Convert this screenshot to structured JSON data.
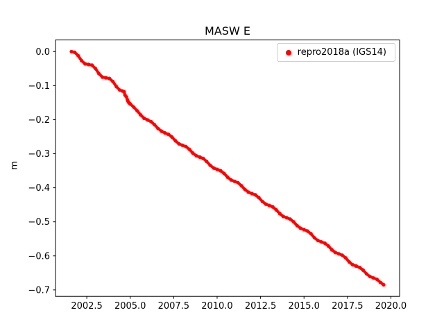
{
  "figure": {
    "title": "MASW E",
    "ylabel": "m"
  },
  "chart_data": {
    "type": "scatter",
    "title": "MASW E",
    "xlabel": "",
    "ylabel": "m",
    "xlim": [
      2000.7,
      2020.5
    ],
    "ylim": [
      -0.719,
      0.034
    ],
    "grid": false,
    "legend_position": "upper right",
    "xticks": {
      "values": [
        2002.5,
        2005.0,
        2007.5,
        2010.0,
        2012.5,
        2015.0,
        2017.5,
        2020.0
      ],
      "labels": [
        "2002.5",
        "2005.0",
        "2007.5",
        "2010.0",
        "2012.5",
        "2015.0",
        "2017.5",
        "2020.0"
      ]
    },
    "yticks": {
      "values": [
        0.0,
        -0.1,
        -0.2,
        -0.3,
        -0.4,
        -0.5,
        -0.6,
        -0.7
      ],
      "labels": [
        "0.0",
        "−0.1",
        "−0.2",
        "−0.3",
        "−0.4",
        "−0.5",
        "−0.6",
        "−0.7"
      ]
    },
    "series": [
      {
        "name": "repro2018a (IGS14)",
        "color": "#ff0000",
        "marker": "dot",
        "segments": [
          [
            [
              2001.62,
              0.0
            ],
            [
              2001.8,
              -0.002
            ],
            [
              2002.0,
              -0.012
            ],
            [
              2002.2,
              -0.027
            ],
            [
              2002.4,
              -0.036
            ],
            [
              2002.6,
              -0.038
            ],
            [
              2002.8,
              -0.04
            ],
            [
              2003.0,
              -0.05
            ],
            [
              2003.2,
              -0.065
            ],
            [
              2003.4,
              -0.075
            ],
            [
              2003.6,
              -0.077
            ],
            [
              2003.8,
              -0.079
            ],
            [
              2004.0,
              -0.088
            ],
            [
              2004.2,
              -0.103
            ],
            [
              2004.4,
              -0.113
            ],
            [
              2004.55,
              -0.116
            ],
            [
              2004.65,
              -0.118
            ],
            [
              2004.7,
              -0.128
            ],
            [
              2004.78,
              -0.133
            ]
          ],
          [
            [
              2004.83,
              -0.141
            ],
            [
              2004.87,
              -0.146
            ],
            [
              2004.92,
              -0.15
            ],
            [
              2004.96,
              -0.152
            ],
            [
              2005.0,
              -0.154
            ],
            [
              2005.2,
              -0.163
            ],
            [
              2005.4,
              -0.174
            ],
            [
              2005.6,
              -0.186
            ],
            [
              2005.8,
              -0.196
            ],
            [
              2006.0,
              -0.201
            ],
            [
              2006.2,
              -0.206
            ],
            [
              2006.4,
              -0.215
            ],
            [
              2006.6,
              -0.226
            ],
            [
              2006.8,
              -0.234
            ],
            [
              2007.0,
              -0.239
            ],
            [
              2007.2,
              -0.243
            ],
            [
              2007.4,
              -0.251
            ],
            [
              2007.6,
              -0.262
            ],
            [
              2007.8,
              -0.271
            ],
            [
              2008.0,
              -0.275
            ],
            [
              2008.2,
              -0.279
            ],
            [
              2008.4,
              -0.287
            ],
            [
              2008.6,
              -0.298
            ],
            [
              2008.8,
              -0.306
            ],
            [
              2009.0,
              -0.31
            ],
            [
              2009.2,
              -0.314
            ],
            [
              2009.4,
              -0.323
            ],
            [
              2009.6,
              -0.334
            ],
            [
              2009.8,
              -0.342
            ],
            [
              2010.0,
              -0.346
            ],
            [
              2010.2,
              -0.35
            ],
            [
              2010.4,
              -0.358
            ],
            [
              2010.6,
              -0.369
            ],
            [
              2010.8,
              -0.377
            ],
            [
              2011.0,
              -0.381
            ],
            [
              2011.2,
              -0.385
            ],
            [
              2011.4,
              -0.394
            ],
            [
              2011.6,
              -0.405
            ],
            [
              2011.8,
              -0.413
            ],
            [
              2012.0,
              -0.417
            ],
            [
              2012.2,
              -0.421
            ],
            [
              2012.4,
              -0.429
            ],
            [
              2012.6,
              -0.44
            ],
            [
              2012.8,
              -0.448
            ],
            [
              2013.0,
              -0.452
            ],
            [
              2013.2,
              -0.456
            ],
            [
              2013.4,
              -0.465
            ],
            [
              2013.6,
              -0.476
            ],
            [
              2013.8,
              -0.484
            ],
            [
              2014.0,
              -0.488
            ],
            [
              2014.2,
              -0.492
            ],
            [
              2014.4,
              -0.5
            ],
            [
              2014.6,
              -0.511
            ],
            [
              2014.8,
              -0.519
            ],
            [
              2015.0,
              -0.523
            ],
            [
              2015.2,
              -0.527
            ],
            [
              2015.4,
              -0.535
            ],
            [
              2015.6,
              -0.547
            ],
            [
              2015.8,
              -0.555
            ],
            [
              2016.0,
              -0.559
            ],
            [
              2016.2,
              -0.563
            ],
            [
              2016.4,
              -0.571
            ],
            [
              2016.6,
              -0.582
            ],
            [
              2016.8,
              -0.59
            ],
            [
              2017.0,
              -0.594
            ],
            [
              2017.2,
              -0.598
            ],
            [
              2017.4,
              -0.606
            ],
            [
              2017.6,
              -0.618
            ],
            [
              2017.8,
              -0.626
            ],
            [
              2018.0,
              -0.63
            ],
            [
              2018.2,
              -0.634
            ],
            [
              2018.4,
              -0.642
            ],
            [
              2018.6,
              -0.653
            ],
            [
              2018.8,
              -0.661
            ],
            [
              2019.0,
              -0.665
            ],
            [
              2019.2,
              -0.669
            ],
            [
              2019.4,
              -0.678
            ],
            [
              2019.58,
              -0.685
            ]
          ]
        ]
      }
    ]
  }
}
